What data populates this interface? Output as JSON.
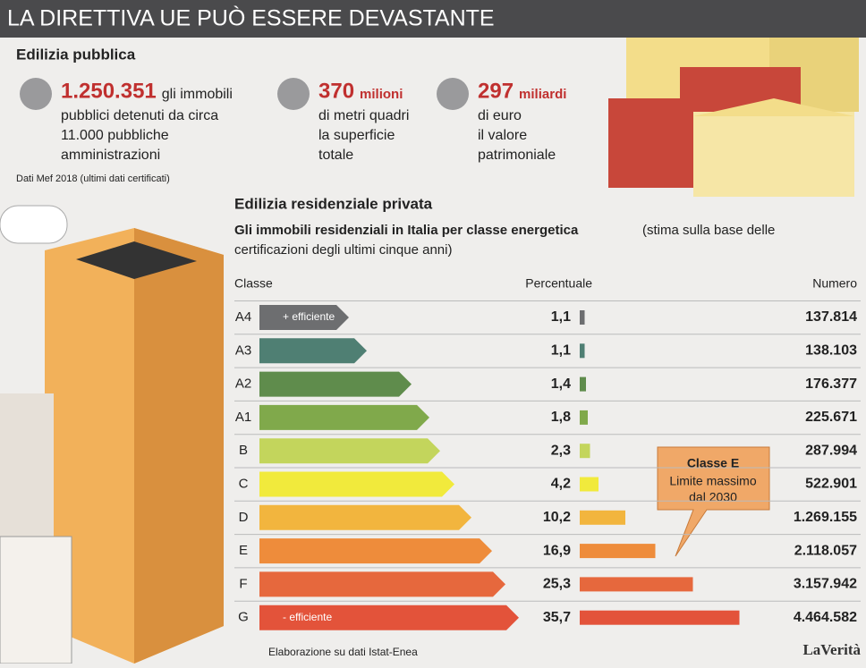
{
  "header": {
    "title": "LA DIRETTIVA UE PUÒ ESSERE DEVASTANTE"
  },
  "public": {
    "title": "Edilizia pubblica",
    "stats": [
      {
        "number": "1.250.351",
        "unit": "gli immobili",
        "lines": [
          "pubblici detenuti da circa",
          "11.000 pubbliche",
          "amministrazioni"
        ]
      },
      {
        "number": "370",
        "unit": "milioni",
        "lines": [
          "di metri quadri",
          "la superficie",
          "totale"
        ]
      },
      {
        "number": "297",
        "unit": "miliardi",
        "lines": [
          "di euro",
          "il valore",
          "patrimoniale"
        ]
      }
    ],
    "source": "Dati Mef 2018 (ultimi dati certificati)"
  },
  "chart_data": {
    "type": "bar",
    "title": "Edilizia residenziale privata",
    "subtitle_bold": "Gli immobili residenziali in Italia per classe energetica",
    "subtitle": [
      "(stima sulla base delle",
      "certificazioni degli ultimi cinque anni)"
    ],
    "column_headers": [
      "Classe",
      "Percentuale",
      "Numero"
    ],
    "categories": [
      "A4",
      "A3",
      "A2",
      "A1",
      "B",
      "C",
      "D",
      "E",
      "F",
      "G"
    ],
    "colors": [
      "#6d6e70",
      "#4f7f73",
      "#5f8c4c",
      "#80a94b",
      "#c3d55c",
      "#f1ea3c",
      "#f2b53e",
      "#ee8c3b",
      "#e6683d",
      "#e3533a"
    ],
    "xlim": [
      0,
      40
    ],
    "series": [
      {
        "name": "Percentuale",
        "values": [
          1.1,
          1.1,
          1.4,
          1.8,
          2.3,
          4.2,
          10.2,
          16.9,
          25.3,
          35.7
        ],
        "value_labels": [
          "1,1",
          "1,1",
          "1,4",
          "1,8",
          "2,3",
          "4,2",
          "10,2",
          "16,9",
          "25,3",
          "35,7"
        ]
      },
      {
        "name": "Numero",
        "values": [
          137814,
          138103,
          176377,
          225671,
          287994,
          522901,
          1269155,
          2118057,
          3157942,
          4464582
        ],
        "value_labels": [
          "137.814",
          "138.103",
          "176.377",
          "225.671",
          "287.994",
          "522.901",
          "1.269.155",
          "2.118.057",
          "3.157.942",
          "4.464.582"
        ]
      }
    ],
    "annotations": {
      "top": "+ efficiente",
      "bottom": "- efficiente",
      "callout_title": "Classe E",
      "callout": [
        "Limite massimo",
        "dal 2030"
      ]
    },
    "source": "Elaborazione su dati Istat-Enea"
  },
  "footer": {
    "logo": "LaVerità"
  }
}
